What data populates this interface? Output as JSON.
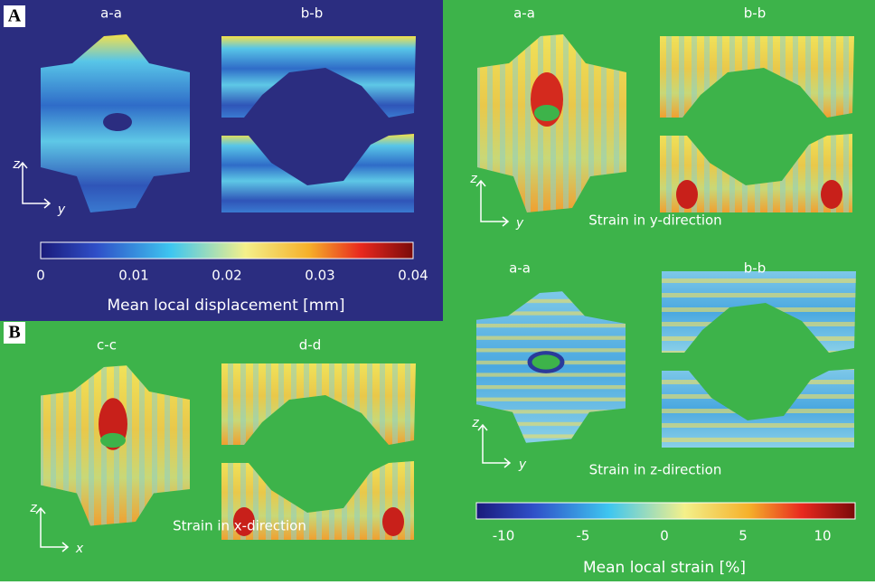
{
  "panel_a": {
    "label": "A",
    "sections": [
      "a-a",
      "b-b"
    ],
    "axis_vertical": "z",
    "axis_horizontal": "y",
    "colorbar": {
      "ticks": [
        0,
        0.01,
        0.02,
        0.03,
        0.04
      ],
      "title": "Mean local displacement [mm]"
    }
  },
  "strain_y": {
    "sections": [
      "a-a",
      "b-b"
    ],
    "axis_vertical": "z",
    "axis_horizontal": "y",
    "caption": "Strain in y-direction"
  },
  "strain_z": {
    "sections": [
      "a-a",
      "b-b"
    ],
    "axis_vertical": "z",
    "axis_horizontal": "y",
    "caption": "Strain in z-direction"
  },
  "panel_b": {
    "label": "B",
    "sections": [
      "c-c",
      "d-d"
    ],
    "axis_vertical": "z",
    "axis_horizontal": "x",
    "caption": "Strain in x-direction"
  },
  "strain_colorbar": {
    "ticks": [
      -10,
      -5,
      0,
      5,
      10
    ],
    "title": "Mean local strain [%]"
  }
}
